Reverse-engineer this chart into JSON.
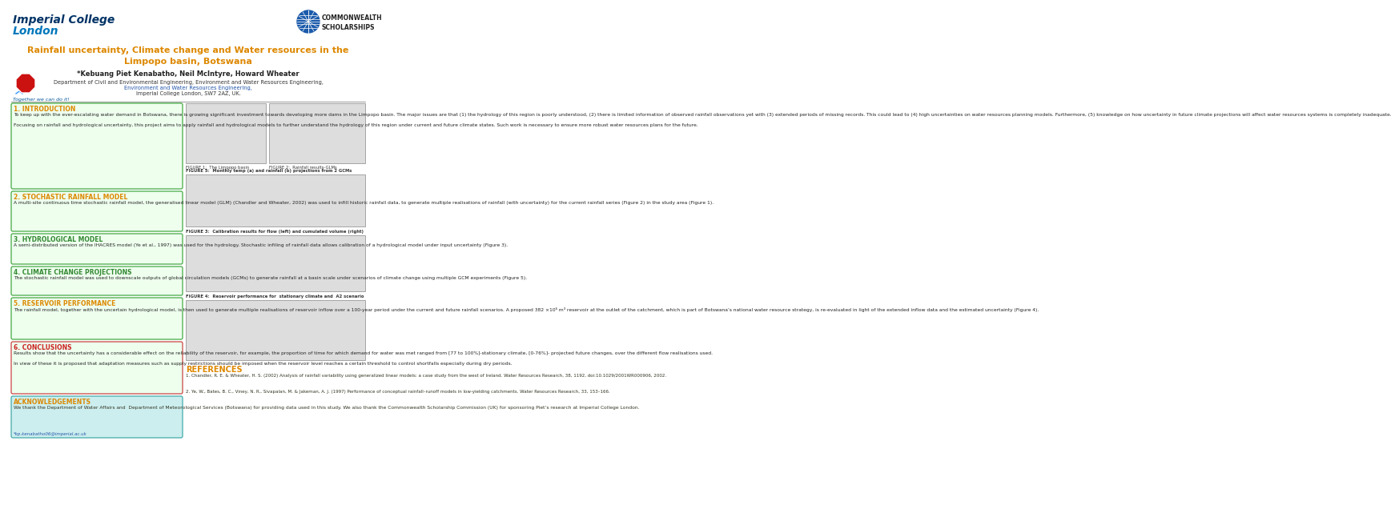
{
  "poster_bg": "#ffffff",
  "title_text": "Rainfall uncertainty, Climate change and Water resources in the\nLimpopo basin, Botswana",
  "title_color": "#dd8800",
  "authors": "*Kebuang Piet Kenabatho, Neil McIntyre, Howard Wheater",
  "authors_color": "#222222",
  "imperial_top": "Imperial College",
  "imperial_bot": "London",
  "imperial_color_top": "#003366",
  "imperial_color_bot": "#0077bb",
  "cw_text": "COMMONWEALTH\nSCHOLARSHIPS",
  "cw_color": "#222222",
  "dept_normal": "Department of Civil and Environmental Engineering, ",
  "dept_link": "Environment and Water Resources Engineering,",
  "dept_last": "Imperial College London, SW7 2AZ, UK.",
  "dept_color": "#333333",
  "dept_link_color": "#2255aa",
  "together_text": "Together we can do it!",
  "together_color": "#005599",
  "section_colors": {
    "intro_bg": "#eeffee",
    "intro_border": "#44aa44",
    "s2_bg": "#eeffee",
    "s2_border": "#44aa44",
    "s3_bg": "#eeffee",
    "s3_border": "#44aa44",
    "s4_bg": "#eeffee",
    "s4_border": "#44aa44",
    "s5_bg": "#eeffee",
    "s5_border": "#44aa44",
    "s6_bg": "#eeffee",
    "s6_border": "#cc4444",
    "ack_bg": "#cceeee",
    "ack_border": "#44aaaa"
  },
  "section_title_colors": {
    "intro": "#dd8800",
    "s2": "#dd8800",
    "s3": "#338833",
    "s4": "#338833",
    "s5": "#dd8800",
    "s6": "#cc2222",
    "ack": "#dd8800"
  },
  "references_title": "REFERENCES",
  "references_title_color": "#dd8800",
  "ref1": "1. Chandler, R. E. & Wheater, H. S. (2002) Analysis of rainfall variability using generalized linear models: a case study from the west of Ireland. Water Resources Research, 38, 1192, doi:10.1029/2001WR000906, 2002.",
  "ref2": "2. Ye, W., Bates, B. C., Viney, N. R., Sivapalan, M. & Jakeman, A. J. (1997) Performance of conceptual rainfall–runoff models in low-yielding catchments. Water Resources Research, 33, 153–166.",
  "ref_color": "#333322",
  "ack_title": "ACKNOWLEDGEMENTS",
  "ack_body": "We thank the Department of Water Affairs and  Department of Meteorological Services (Botswana) for providing data used in this study. We also thank the Commonwealth Scholarship Commission (UK) for sponsoring Piet’s research at Imperial College London.",
  "ack_email": "*kp.kenabatho06@imperial.ac.uk",
  "ack_text_color": "#333322",
  "fig_labels": {
    "fig1": "FIGURE 1:  The Limpopo basin",
    "fig2": "FIGURE 2:  Rainfall results-GLMs",
    "fig5": "FIGURE 5:  Monthly temp (a) and rainfall (b) projections from 2 GCMs",
    "fig3": "FIGURE 3:  Calibration results for flow (left) and cumulated volume (right)",
    "fig4": "FIGURE 4:  Reservoir performance for  stationary climate and  A2 scenario"
  },
  "fig_label_color": "#333333",
  "intro_title": "1. INTRODUCTION",
  "intro_body": "To keep up with the ever-escalating water demand in Botswana, there is growing significant investment towards developing more dams in the Limpopo basin. The major issues are that (1) the hydrology of this region is poorly understood, (2) there is limited information of observed rainfall observations yet with (3) extended periods of missing records. This could lead to (4) high uncertainties on water resources planning models. Furthermore, (5) knowledge on how uncertainty in future climate projections will affect water resources systems is completely inadequate.\n\nFocusing on rainfall and hydrological uncertainty, this project aims to apply rainfall and hydrological models to further understand the hydrology of this region under current and future climate states. Such work is necessary to ensure more robust water resources plans for the future.",
  "s2_title": "2. STOCHASTIC RAINFALL MODEL",
  "s2_body": "A multi-site continuous time stochastic rainfall model, the generalised linear model (GLM) (Chandler and Wheater, 2002) was used to infill historic rainfall data, to generate multiple realisations of rainfall (with uncertainty) for the current rainfall series (Figure 2) in the study area (Figure 1).",
  "s3_title": "3. HYDROLOGICAL MODEL",
  "s3_body": "A semi-distributed version of the IHACRES model (Ye et al., 1997) was used for the hydrology. Stochastic infiling of rainfall data allows calibration of a hydrological model under input uncertainty (Figure 3).",
  "s4_title": "4. CLIMATE CHANGE PROJECTIONS",
  "s4_body": "The stochastic rainfall model was used to downscale outputs of global circulation models (GCMs) to generate rainfall at a basin scale under scenarios of climate change using multiple GCM experiments (Figure 5).",
  "s5_title": "5. RESERVOIR PERFORMANCE",
  "s5_body": "The rainfall model, together with the uncertain hydrological model, is then used to generate multiple realisations of reservoir inflow over a 100-year period under the current and future rainfall scenarios. A proposed 382 ×10⁶ m³ reservoir at the outlet of the catchment, which is part of Botswana’s national water resource strategy, is re-evaluated in light of the extended inflow data and the estimated uncertainty (Figure 4).",
  "s6_title": "6. CONCLUSIONS",
  "s6_body": "Results show that the uncertainty has a considerable effect on the reliability of the reservoir, for example, the proportion of time for which demand for water was met ranged from [77 to 100%]-stationary climate, [0-76%]- projected future changes, over the different flow realisations used.\n\nIn view of these it is proposed that adaptation measures such as supply restrictions should be imposed when the reservoir level reaches a certain threshold to control shortfalls especially during dry periods."
}
